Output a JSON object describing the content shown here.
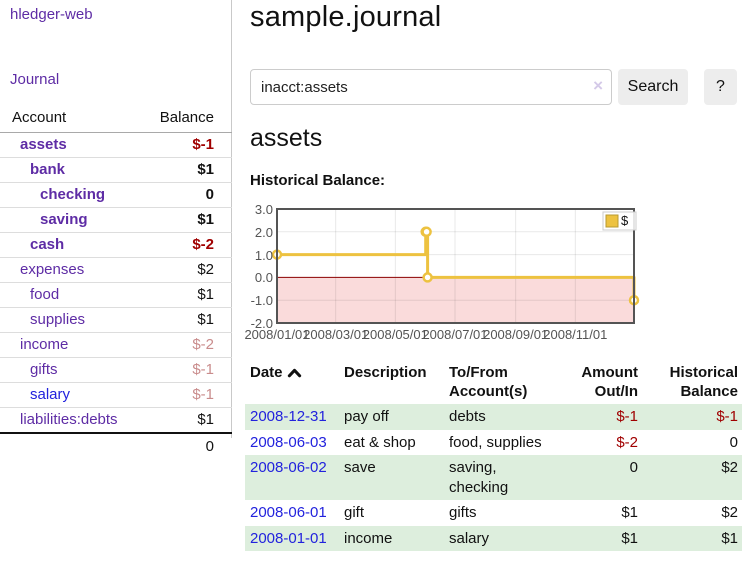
{
  "colors": {
    "link_purple": "#5e2ca5",
    "link_blue": "#2222dd",
    "negative_red": "#a00000",
    "negative_dim_red": "#c98c8c",
    "row_green": "#ddeedd",
    "chart_line_gold": "#edc240",
    "chart_negative_bg": "#fadbdb",
    "chart_zero_line": "#8b0000",
    "chart_border": "#545454"
  },
  "sidebar": {
    "app_title": "hledger-web",
    "nav_journal": "Journal",
    "accounts": {
      "headers": {
        "account": "Account",
        "balance": "Balance"
      },
      "rows": [
        {
          "name": "assets",
          "depth": 1,
          "bold": true,
          "balance": "$-1",
          "link_color": "purple"
        },
        {
          "name": "bank",
          "depth": 2,
          "bold": true,
          "balance": "$1",
          "link_color": "purple"
        },
        {
          "name": "checking",
          "depth": 3,
          "bold": true,
          "balance": "0",
          "link_color": "purple"
        },
        {
          "name": "saving",
          "depth": 3,
          "bold": true,
          "balance": "$1",
          "link_color": "purple"
        },
        {
          "name": "cash",
          "depth": 2,
          "bold": true,
          "balance": "$-2",
          "link_color": "purple"
        },
        {
          "name": "expenses",
          "depth": 1,
          "bold": false,
          "balance": "$2",
          "link_color": "purple"
        },
        {
          "name": "food",
          "depth": 2,
          "bold": false,
          "balance": "$1",
          "link_color": "purple"
        },
        {
          "name": "supplies",
          "depth": 2,
          "bold": false,
          "balance": "$1",
          "link_color": "purple"
        },
        {
          "name": "income",
          "depth": 1,
          "bold": false,
          "balance": "$-2",
          "link_color": "purple"
        },
        {
          "name": "gifts",
          "depth": 2,
          "bold": false,
          "balance": "$-1",
          "link_color": "purple"
        },
        {
          "name": "salary",
          "depth": 2,
          "bold": false,
          "balance": "$-1",
          "link_color": "blue"
        },
        {
          "name": "liabilities:debts",
          "depth": 1,
          "bold": false,
          "balance": "$1",
          "link_color": "purple"
        }
      ],
      "total": "0"
    }
  },
  "header": {
    "title": "sample.journal"
  },
  "search": {
    "value": "inacct:assets",
    "clear_icon": "×",
    "button_label": "Search",
    "help_label": "?"
  },
  "section": {
    "heading": "assets",
    "chart_label": "Historical Balance:"
  },
  "chart_data": {
    "type": "line",
    "step": true,
    "title": "Historical Balance:",
    "legend": {
      "label": "$",
      "position": "top-right"
    },
    "x_range": [
      "2008-01-01",
      "2008-12-31"
    ],
    "ylim": [
      -2.0,
      3.0
    ],
    "grid": true,
    "negative_region_shaded": true,
    "zero_line": true,
    "series": [
      {
        "name": "$",
        "points": [
          [
            "2008-01-01",
            1
          ],
          [
            "2008-06-01",
            2
          ],
          [
            "2008-06-02",
            2
          ],
          [
            "2008-06-03",
            0
          ],
          [
            "2008-12-31",
            -1
          ]
        ]
      }
    ],
    "y_ticks": [
      {
        "value": 3,
        "label": "3.0"
      },
      {
        "value": 2,
        "label": "2.0"
      },
      {
        "value": 1,
        "label": "1.0"
      },
      {
        "value": 0,
        "label": "0.0"
      },
      {
        "value": -1,
        "label": "-1.0"
      },
      {
        "value": -2,
        "label": "-2.0"
      }
    ],
    "x_ticks": [
      {
        "date": "2008-01-01",
        "label": "2008/01/01"
      },
      {
        "date": "2008-03-01",
        "label": "2008/03/01"
      },
      {
        "date": "2008-05-01",
        "label": "2008/05/01"
      },
      {
        "date": "2008-07-01",
        "label": "2008/07/01"
      },
      {
        "date": "2008-09-01",
        "label": "2008/09/01"
      },
      {
        "date": "2008-11-01",
        "label": "2008/11/01"
      }
    ]
  },
  "register": {
    "headers": {
      "date": "Date",
      "sort_icon": "chevron-up",
      "description": "Description",
      "accounts": "To/From Account(s)",
      "amount": "Amount Out/In",
      "balance": "Historical Balance"
    },
    "rows": [
      {
        "date": "2008-12-31",
        "description": "pay off",
        "accounts": "debts",
        "amount": "$-1",
        "balance": "$-1"
      },
      {
        "date": "2008-06-03",
        "description": "eat & shop",
        "accounts": "food, supplies",
        "amount": "$-2",
        "balance": "0"
      },
      {
        "date": "2008-06-02",
        "description": "save",
        "accounts": "saving, checking",
        "amount": "0",
        "balance": "$2"
      },
      {
        "date": "2008-06-01",
        "description": "gift",
        "accounts": "gifts",
        "amount": "$1",
        "balance": "$2"
      },
      {
        "date": "2008-01-01",
        "description": "income",
        "accounts": "salary",
        "amount": "$1",
        "balance": "$1"
      }
    ]
  }
}
